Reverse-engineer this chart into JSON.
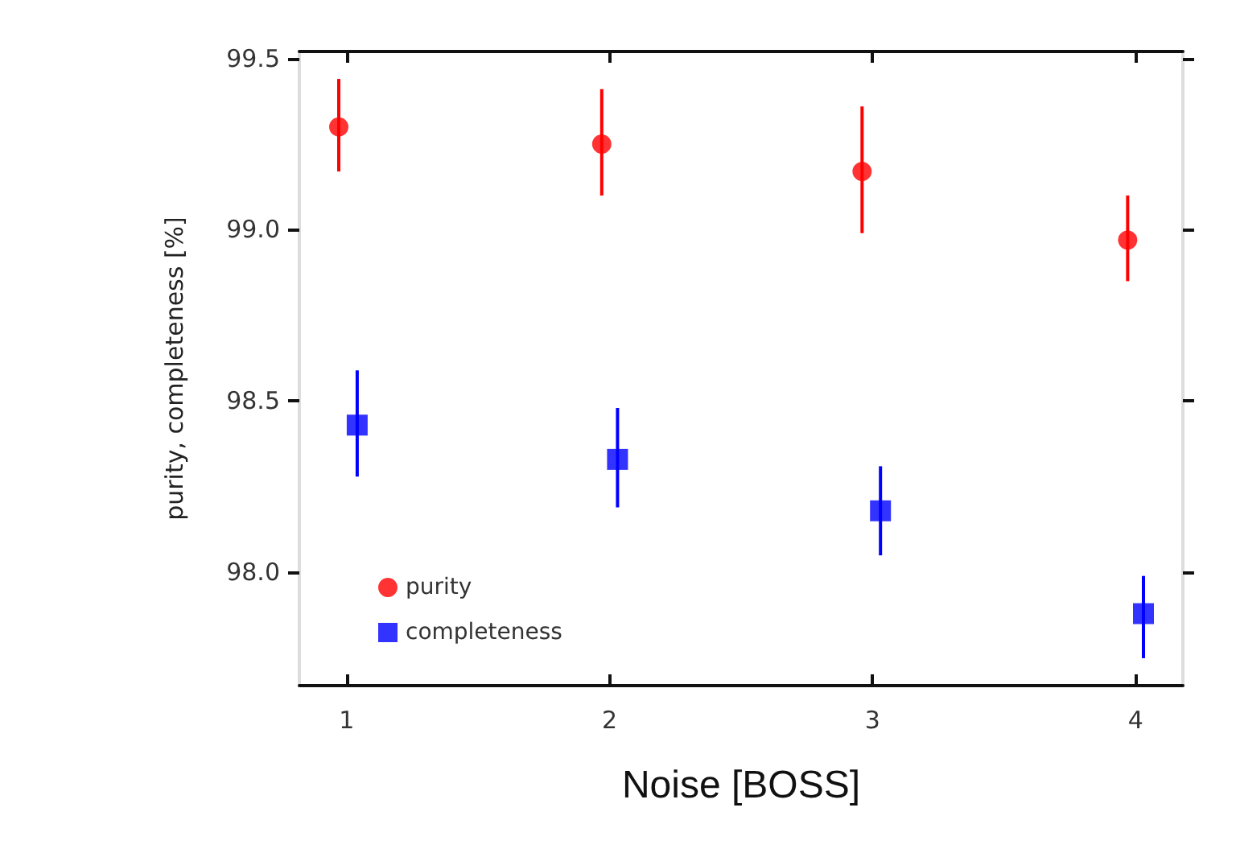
{
  "chart_data": {
    "type": "scatter",
    "xlabel": "Noise [BOSS]",
    "ylabel": "purity, completeness [%]",
    "xlim": [
      0.82,
      4.18
    ],
    "xticks": [
      1,
      2,
      3,
      4
    ],
    "ylim": [
      97.67,
      99.52
    ],
    "yticks": [
      {
        "value": 98.0,
        "label": "98.0"
      },
      {
        "value": 98.5,
        "label": "98.5"
      },
      {
        "value": 99.0,
        "label": "99.0"
      },
      {
        "value": 99.5,
        "label": "99.5"
      }
    ],
    "grid": false,
    "legend": "bottom left",
    "series": [
      {
        "name": "purity",
        "color": "#ff0000",
        "marker": "circle",
        "x": [
          0.97,
          1.97,
          2.96,
          3.97
        ],
        "values": [
          99.3,
          99.25,
          99.17,
          98.97
        ],
        "errors": [
          [
            99.17,
            99.44
          ],
          [
            99.1,
            99.41
          ],
          [
            98.99,
            99.36
          ],
          [
            98.85,
            99.1
          ]
        ]
      },
      {
        "name": "completeness",
        "color": "#0000ff",
        "marker": "square",
        "x": [
          1.04,
          2.03,
          3.03,
          4.03
        ],
        "values": [
          98.43,
          98.33,
          98.18,
          97.88
        ],
        "errors": [
          [
            98.28,
            98.59
          ],
          [
            98.19,
            98.48
          ],
          [
            98.05,
            98.31
          ],
          [
            97.75,
            97.99
          ]
        ]
      }
    ]
  }
}
